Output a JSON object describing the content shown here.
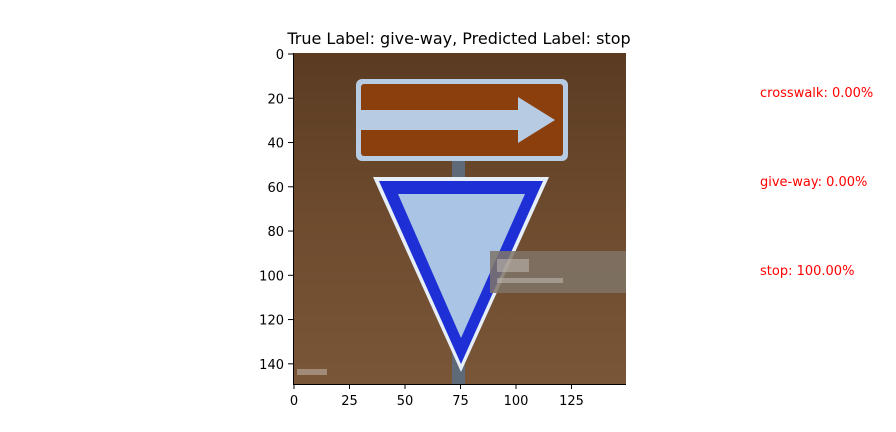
{
  "figure": {
    "title": "True Label: give-way, Predicted Label: stop",
    "x_ticks": [
      "0",
      "25",
      "50",
      "75",
      "100",
      "125"
    ],
    "y_ticks": [
      "0",
      "20",
      "40",
      "60",
      "80",
      "100",
      "120",
      "140"
    ],
    "image_extent": {
      "x": [
        0,
        150
      ],
      "y": [
        0,
        150
      ]
    }
  },
  "predictions": [
    {
      "text": "crosswalk: 0.00%",
      "probability": 0.0
    },
    {
      "text": "give-way: 0.00%",
      "probability": 0.0
    },
    {
      "text": "stop: 100.00%",
      "probability": 100.0
    }
  ],
  "colors": {
    "background": "#6e4b2e",
    "arrow_board": "#8a3f0d",
    "sign_border": "#1e2fd6",
    "sign_fill": "#a9c4e4",
    "prediction_text": "#ff0000"
  },
  "icons": [
    "one-way-arrow-sign",
    "give-way-triangle-sign"
  ]
}
